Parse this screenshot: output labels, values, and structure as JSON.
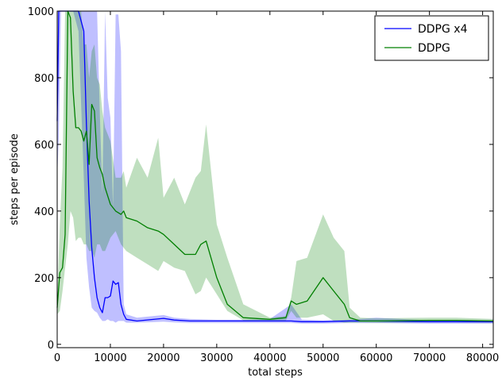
{
  "chart_data": {
    "type": "line",
    "title": "",
    "xlabel": "total steps",
    "ylabel": "steps per episode",
    "xlim": [
      0,
      82000
    ],
    "ylim": [
      -10,
      1000
    ],
    "xticks": [
      0,
      10000,
      20000,
      30000,
      40000,
      50000,
      60000,
      70000,
      80000
    ],
    "yticks": [
      0,
      200,
      400,
      600,
      800,
      1000
    ],
    "grid": false,
    "legend_position": "top-right",
    "series": [
      {
        "name": "DDPG x4",
        "color": "#0000ff",
        "x": [
          0,
          300,
          700,
          1000,
          1500,
          2000,
          3000,
          4000,
          5000,
          5500,
          6000,
          6500,
          7000,
          7500,
          8000,
          8500,
          9000,
          9500,
          10000,
          10500,
          11000,
          11500,
          12000,
          12500,
          13000,
          15000,
          20000,
          22000,
          25000,
          30000,
          35000,
          40000,
          44000,
          46000,
          50000,
          55000,
          60000,
          70000,
          82000
        ],
        "y": [
          670,
          1000,
          1000,
          1000,
          1000,
          1000,
          1000,
          1000,
          940,
          660,
          430,
          290,
          200,
          140,
          110,
          95,
          140,
          140,
          145,
          190,
          180,
          185,
          120,
          90,
          75,
          70,
          78,
          73,
          70,
          70,
          70,
          70,
          70,
          68,
          68,
          70,
          70,
          68,
          68
        ],
        "upper": [
          1000,
          1000,
          1000,
          1000,
          1000,
          1000,
          1000,
          1000,
          1000,
          1000,
          1000,
          1000,
          1000,
          1000,
          700,
          450,
          1000,
          740,
          680,
          410,
          990,
          990,
          880,
          120,
          90,
          80,
          88,
          80,
          76,
          74,
          74,
          76,
          120,
          74,
          72,
          74,
          80,
          72,
          72
        ],
        "lower": [
          500,
          620,
          1000,
          1000,
          1000,
          1000,
          1000,
          940,
          500,
          260,
          170,
          110,
          100,
          95,
          80,
          70,
          70,
          75,
          70,
          70,
          65,
          70,
          70,
          70,
          65,
          65,
          68,
          66,
          64,
          64,
          64,
          64,
          64,
          62,
          62,
          64,
          64,
          62,
          62
        ]
      },
      {
        "name": "DDPG",
        "color": "#007f00",
        "x": [
          0,
          500,
          1000,
          1500,
          2000,
          2500,
          3000,
          3500,
          4000,
          4500,
          5000,
          5500,
          6000,
          6500,
          7000,
          7500,
          8000,
          8500,
          9000,
          10000,
          11000,
          12000,
          12500,
          13000,
          15000,
          17000,
          19000,
          20000,
          22000,
          24000,
          26000,
          27000,
          28000,
          30000,
          32000,
          35000,
          40000,
          43000,
          44000,
          45000,
          47000,
          50000,
          52000,
          54000,
          55000,
          57000,
          60000,
          70000,
          75000,
          82000
        ],
        "y": [
          110,
          215,
          230,
          330,
          1000,
          980,
          760,
          650,
          650,
          640,
          610,
          640,
          540,
          720,
          700,
          560,
          530,
          510,
          470,
          420,
          400,
          390,
          400,
          380,
          370,
          350,
          340,
          330,
          300,
          270,
          270,
          300,
          310,
          200,
          120,
          80,
          75,
          80,
          130,
          120,
          130,
          200,
          160,
          120,
          80,
          70,
          70,
          72,
          72,
          70
        ],
        "upper": [
          130,
          360,
          530,
          1000,
          1000,
          1000,
          1000,
          1000,
          1000,
          1000,
          900,
          900,
          800,
          880,
          900,
          800,
          780,
          700,
          650,
          610,
          500,
          500,
          520,
          470,
          560,
          500,
          620,
          440,
          500,
          420,
          500,
          520,
          660,
          360,
          260,
          120,
          80,
          85,
          140,
          250,
          260,
          390,
          320,
          280,
          110,
          80,
          78,
          80,
          80,
          76
        ],
        "lower": [
          90,
          100,
          160,
          230,
          300,
          400,
          380,
          310,
          320,
          320,
          300,
          300,
          280,
          280,
          260,
          300,
          300,
          280,
          280,
          320,
          340,
          300,
          290,
          280,
          260,
          240,
          220,
          250,
          230,
          220,
          150,
          160,
          200,
          150,
          100,
          72,
          70,
          72,
          100,
          80,
          80,
          90,
          70,
          65,
          65,
          65,
          64,
          66,
          66,
          64
        ]
      }
    ]
  }
}
